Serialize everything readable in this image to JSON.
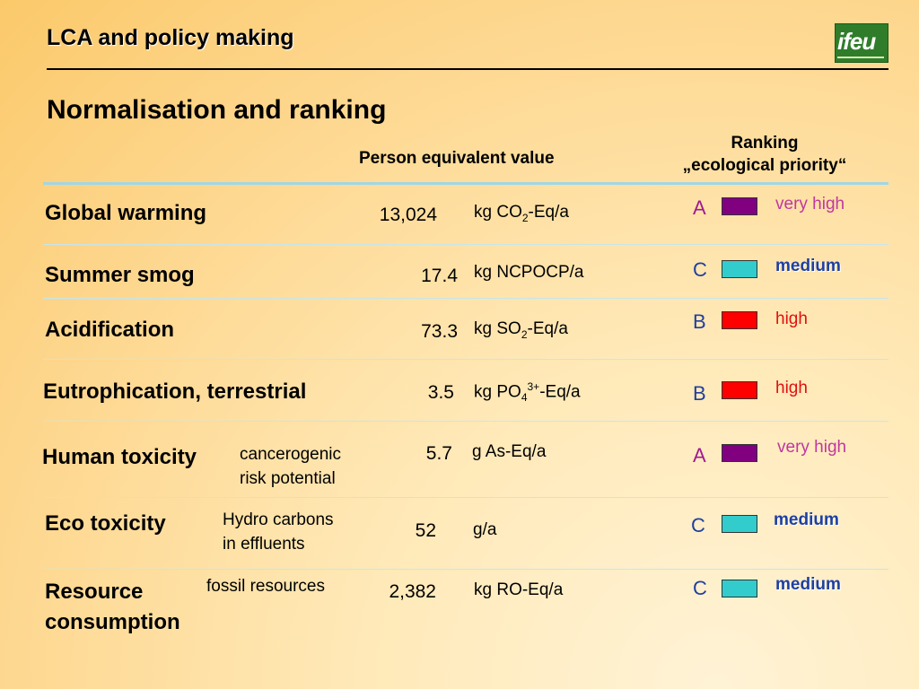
{
  "header": {
    "title": "LCA and policy making",
    "logo_text": "ifeu",
    "logo_icon": "ifeu-logo"
  },
  "page_title": "Normalisation and ranking",
  "columns": {
    "person_equivalent": "Person equivalent value",
    "ranking_line1": "Ranking",
    "ranking_line2": "„ecological priority“"
  },
  "rows": [
    {
      "category": "Global warming",
      "sub1": "",
      "sub2": "",
      "value": "13,024",
      "unit_pre": "kg CO",
      "unit_sub": "2",
      "unit_sup": "",
      "unit_post": "-Eq/a",
      "rank": "A",
      "color": "#800080",
      "priority": "very high"
    },
    {
      "category": "Summer smog",
      "sub1": "",
      "sub2": "",
      "value": "17.4",
      "unit_pre": "kg NCPOCP/a",
      "unit_sub": "",
      "unit_sup": "",
      "unit_post": "",
      "rank": "C",
      "color": "#33cccc",
      "priority": "medium"
    },
    {
      "category": "Acidification",
      "sub1": "",
      "sub2": "",
      "value": "73.3",
      "unit_pre": "kg SO",
      "unit_sub": "2",
      "unit_sup": "",
      "unit_post": "-Eq/a",
      "rank": "B",
      "color": "#ff0000",
      "priority": "high"
    },
    {
      "category": "Eutrophication, terrestrial",
      "sub1": "",
      "sub2": "",
      "value": "3.5",
      "unit_pre": "kg PO",
      "unit_sub": "4",
      "unit_sup": "3+",
      "unit_post": "-Eq/a",
      "rank": "B",
      "color": "#ff0000",
      "priority": "high"
    },
    {
      "category": "Human toxicity",
      "sub1": "cancerogenic",
      "sub2": "risk potential",
      "value": "5.7",
      "unit_pre": "g As-Eq/a",
      "unit_sub": "",
      "unit_sup": "",
      "unit_post": "",
      "rank": "A",
      "color": "#800080",
      "priority": "very high"
    },
    {
      "category": "Eco toxicity",
      "sub1": "Hydro carbons",
      "sub2": "in effluents",
      "value": "52",
      "unit_pre": "g/a",
      "unit_sub": "",
      "unit_sup": "",
      "unit_post": "",
      "rank": "C",
      "color": "#33cccc",
      "priority": "medium"
    },
    {
      "category_line1": "Resource",
      "category_line2": "consumption",
      "sub1": "fossil resources",
      "sub2": "",
      "value": "2,382",
      "unit_pre": "kg RO-Eq/a",
      "unit_sub": "",
      "unit_sup": "",
      "unit_post": "",
      "rank": "C",
      "color": "#33cccc",
      "priority": "medium"
    }
  ]
}
